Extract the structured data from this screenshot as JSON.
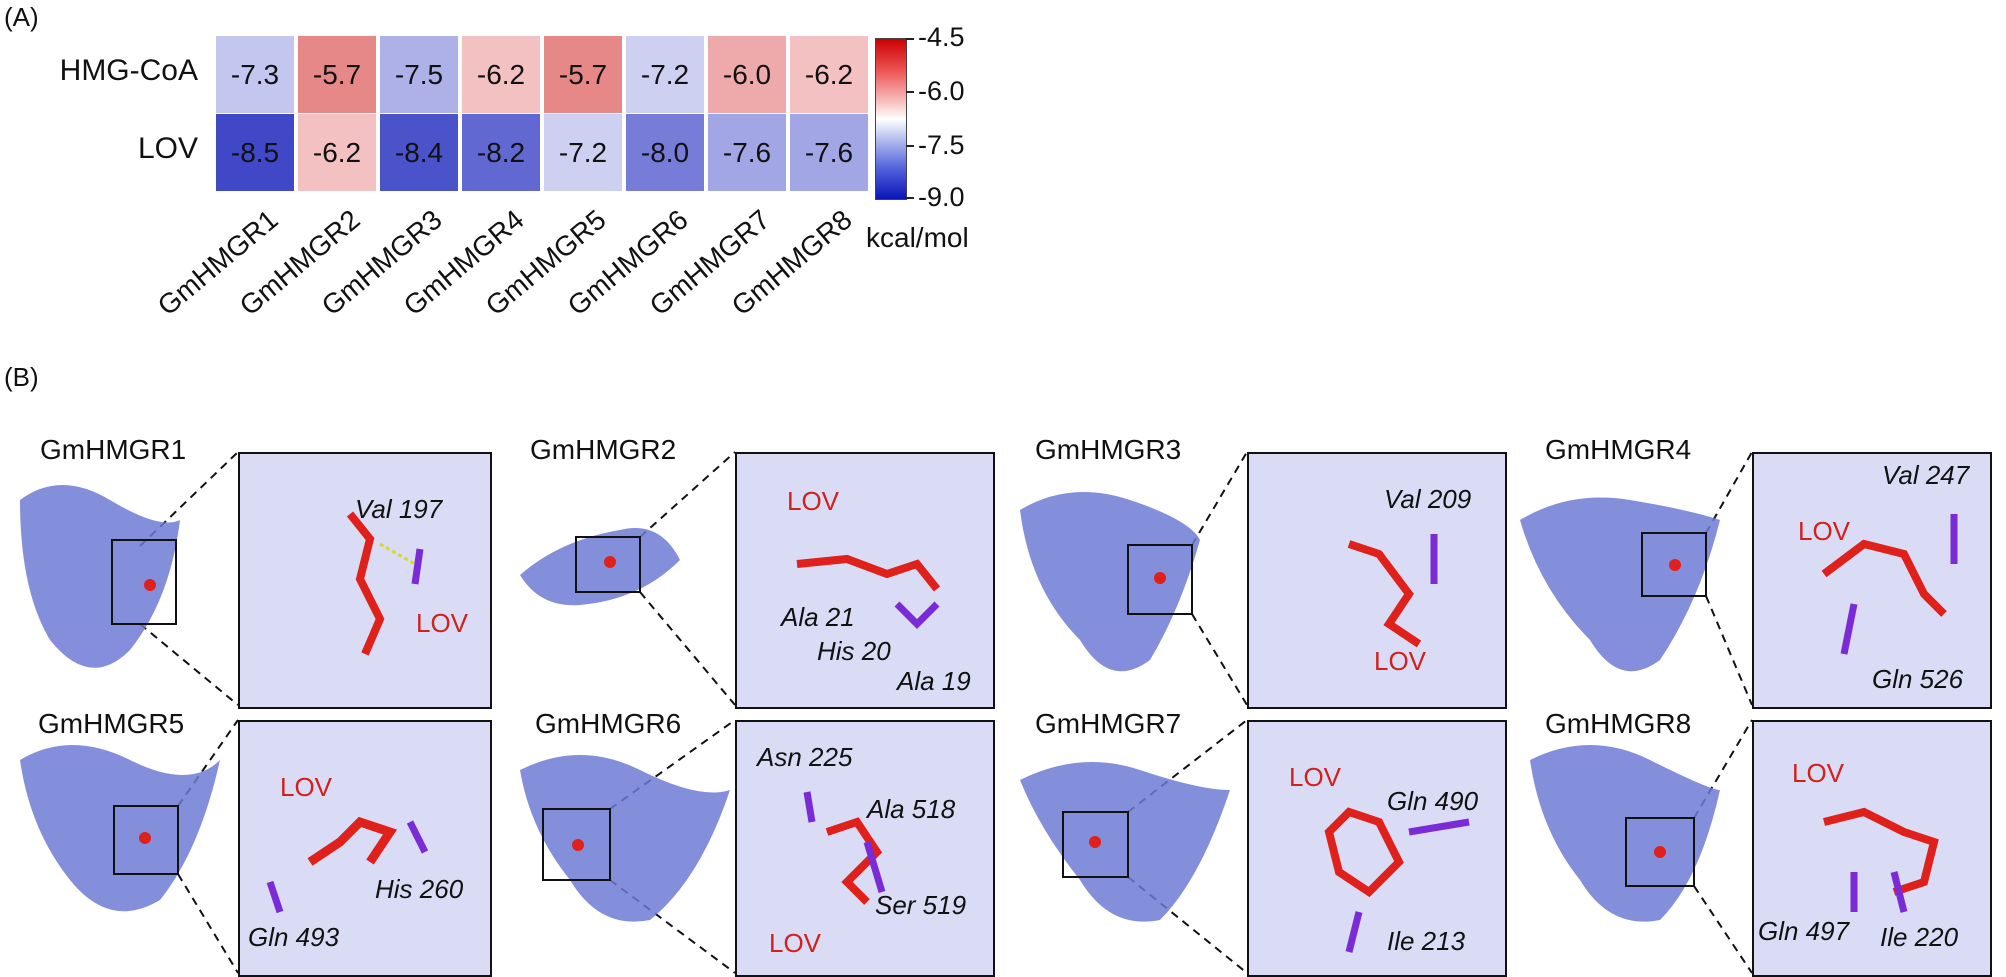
{
  "panel_a": {
    "label": "(A)",
    "rows": [
      "HMG-CoA",
      "LOV"
    ],
    "columns": [
      "GmHMGR1",
      "GmHMGR2",
      "GmHMGR3",
      "GmHMGR4",
      "GmHMGR5",
      "GmHMGR6",
      "GmHMGR7",
      "GmHMGR8"
    ],
    "values_display": [
      [
        "-7.3",
        "-5.7",
        "-7.5",
        "-6.2",
        "-5.7",
        "-7.2",
        "-6.0",
        "-6.2"
      ],
      [
        "-8.5",
        "-6.2",
        "-8.4",
        "-8.2",
        "-7.2",
        "-8.0",
        "-7.6",
        "-7.6"
      ]
    ],
    "colorbar": {
      "ticks": [
        "-4.5",
        "-6.0",
        "-7.5",
        "-9.0"
      ],
      "unit": "kcal/mol",
      "range": [
        -9.0,
        -4.5
      ]
    }
  },
  "chart_data": {
    "type": "heatmap",
    "rows": [
      "HMG-CoA",
      "LOV"
    ],
    "columns": [
      "GmHMGR1",
      "GmHMGR2",
      "GmHMGR3",
      "GmHMGR4",
      "GmHMGR5",
      "GmHMGR6",
      "GmHMGR7",
      "GmHMGR8"
    ],
    "values": [
      [
        -7.3,
        -5.7,
        -7.5,
        -6.2,
        -5.7,
        -7.2,
        -6.0,
        -6.2
      ],
      [
        -8.5,
        -6.2,
        -8.4,
        -8.2,
        -7.2,
        -8.0,
        -7.6,
        -7.6
      ]
    ],
    "colorbar_range": [
      -9.0,
      -4.5
    ],
    "colorbar_label": "kcal/mol",
    "colormap": [
      "#0a14b8",
      "#ffffff",
      "#cc0000"
    ]
  },
  "panel_b": {
    "label": "(B)",
    "structures": [
      {
        "title": "GmHMGR1",
        "ligand": "LOV",
        "residues": [
          "Val 197"
        ]
      },
      {
        "title": "GmHMGR2",
        "ligand": "LOV",
        "residues": [
          "Ala 21",
          "His 20",
          "Ala 19"
        ]
      },
      {
        "title": "GmHMGR3",
        "ligand": "LOV",
        "residues": [
          "Val 209"
        ]
      },
      {
        "title": "GmHMGR4",
        "ligand": "LOV",
        "residues": [
          "Val 247",
          "Gln 526"
        ]
      },
      {
        "title": "GmHMGR5",
        "ligand": "LOV",
        "residues": [
          "His 260",
          "Gln 493"
        ]
      },
      {
        "title": "GmHMGR6",
        "ligand": "LOV",
        "residues": [
          "Asn 225",
          "Ala 518",
          "Ser 519"
        ]
      },
      {
        "title": "GmHMGR7",
        "ligand": "LOV",
        "residues": [
          "Gln 490",
          "Ile 213"
        ]
      },
      {
        "title": "GmHMGR8",
        "ligand": "LOV",
        "residues": [
          "Gln 497",
          "Ile 220"
        ]
      }
    ]
  },
  "colors": {
    "protein": "#6f7bd6",
    "ligand": "#e0201b",
    "residue": "#7a2bd6",
    "hbond": "#d8d82a"
  }
}
